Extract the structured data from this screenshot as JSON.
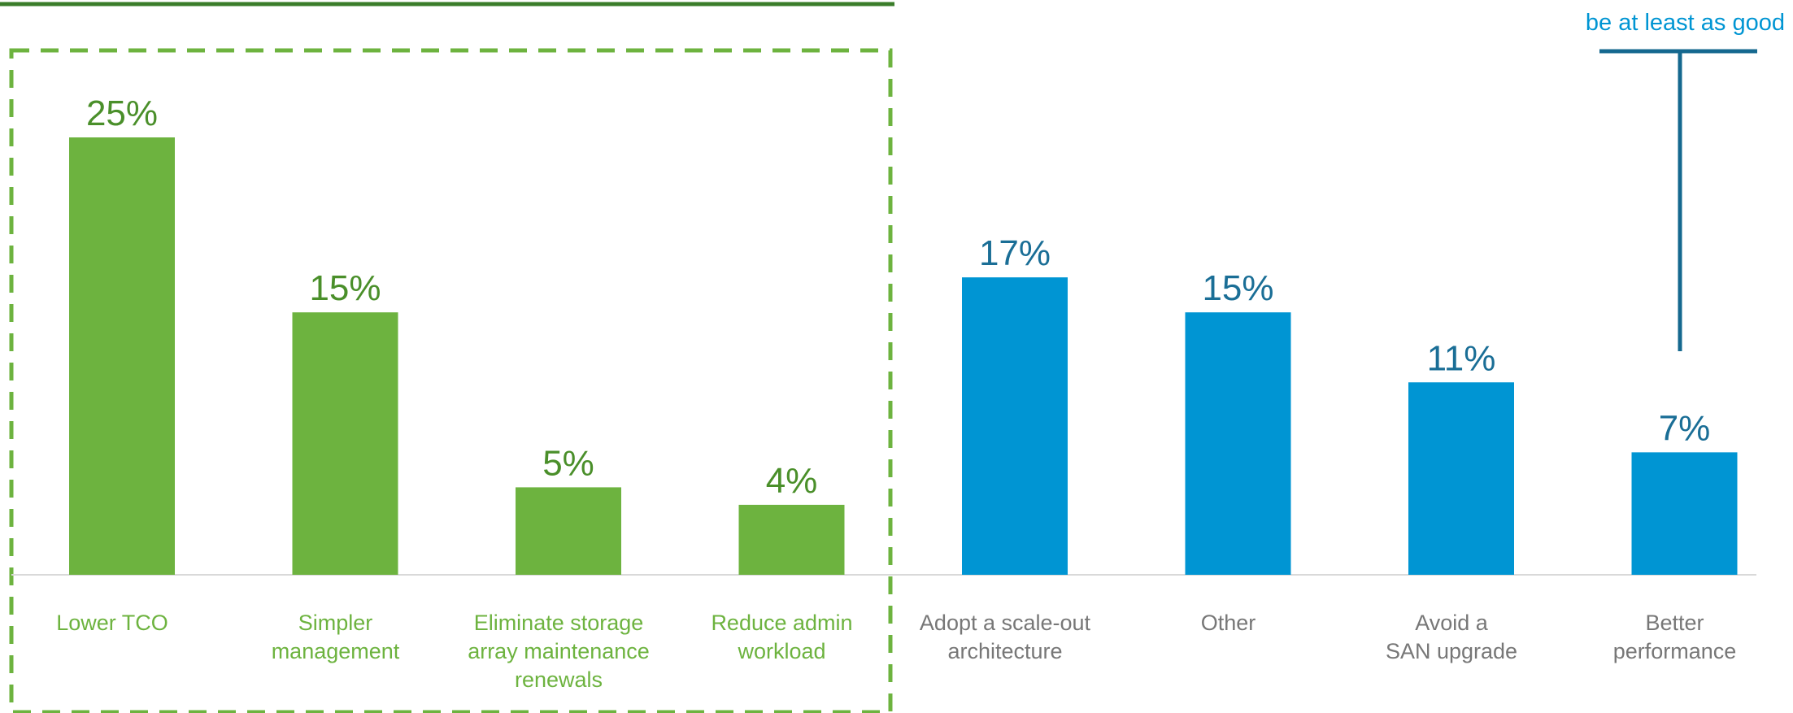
{
  "chart_data": {
    "type": "bar",
    "categories": [
      "Lower TCO",
      "Simpler management",
      "Eliminate storage array maintenance renewals",
      "Reduce admin workload",
      "Adopt a scale-out architecture",
      "Other",
      "Avoid a SAN upgrade",
      "Better performance"
    ],
    "category_lines": [
      [
        "Lower TCO"
      ],
      [
        "Simpler",
        "management"
      ],
      [
        "Eliminate storage",
        "array maintenance",
        "renewals"
      ],
      [
        "Reduce admin",
        "workload"
      ],
      [
        "Adopt a scale-out",
        "architecture"
      ],
      [
        "Other"
      ],
      [
        "Avoid a",
        "SAN upgrade"
      ],
      [
        "Better",
        "performance"
      ]
    ],
    "values": [
      25,
      15,
      5,
      4,
      17,
      15,
      11,
      7
    ],
    "value_labels": [
      "25%",
      "15%",
      "5%",
      "4%",
      "17%",
      "15%",
      "11%",
      "7%"
    ],
    "groups": [
      0,
      0,
      0,
      0,
      1,
      1,
      1,
      1
    ],
    "ylim": [
      0,
      25
    ],
    "grid": false,
    "annotation_text": "be at least as good",
    "colors": {
      "green_bar": "#6db33f",
      "green_label": "#4a8f2a",
      "green_category": "#6db33f",
      "green_box": "#6db33f",
      "green_line": "#3a7d2a",
      "blue_bar": "#0095d3",
      "blue_label": "#1a6e96",
      "grey_category": "#777777",
      "bracket": "#15688f",
      "annotation": "#0095d3",
      "axis": "#d9d9d9"
    }
  }
}
